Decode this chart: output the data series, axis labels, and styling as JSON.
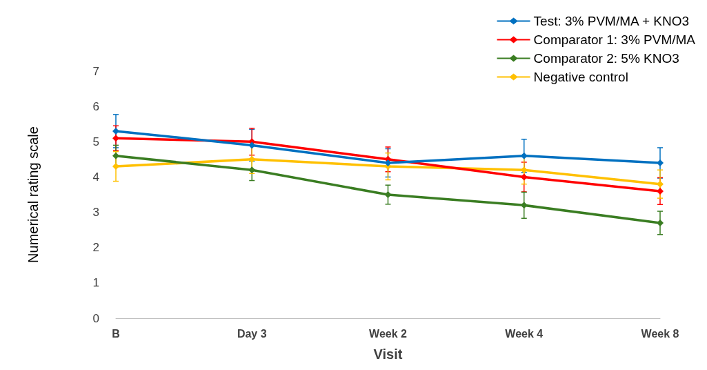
{
  "chart_data": {
    "type": "line",
    "xlabel": "Visit",
    "ylabel": "Numerical rating scale",
    "categories": [
      "B",
      "Day 3",
      "Week 2",
      "Week 4",
      "Week 8"
    ],
    "ylim": [
      0,
      7
    ],
    "yticks": [
      0,
      1,
      2,
      3,
      4,
      5,
      6,
      7
    ],
    "grid": false,
    "legend": "top right",
    "marker": "diamond",
    "line_style": "solid",
    "series": [
      {
        "name": "Test: 3% PVM/MA + KNO3",
        "color": "#0070c0",
        "values": [
          5.3,
          4.9,
          4.4,
          4.6,
          4.4
        ],
        "errors": [
          0.47,
          0.45,
          0.4,
          0.47,
          0.43
        ]
      },
      {
        "name": "Comparator 1: 3% PVM/MA",
        "color": "#ff0000",
        "values": [
          5.1,
          5.0,
          4.5,
          4.0,
          3.6
        ],
        "errors": [
          0.35,
          0.38,
          0.35,
          0.42,
          0.38
        ]
      },
      {
        "name": "Comparator 2: 5% KNO3",
        "color": "#3a7d22",
        "values": [
          4.6,
          4.2,
          3.5,
          3.2,
          2.7
        ],
        "errors": [
          0.3,
          0.3,
          0.27,
          0.37,
          0.33
        ]
      },
      {
        "name": "Negative control",
        "color": "#ffc000",
        "values": [
          4.3,
          4.5,
          4.3,
          4.2,
          3.8
        ],
        "errors": [
          0.42,
          0.4,
          0.38,
          0.4,
          0.4
        ]
      }
    ]
  }
}
